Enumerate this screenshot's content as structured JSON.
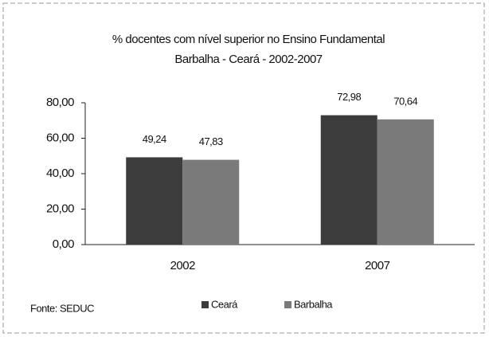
{
  "chart_data": {
    "type": "bar",
    "title": "% docentes com nível superior no  Ensino Fundamental",
    "subtitle": "Barbalha - Ceará - 2002-2007",
    "categories": [
      "2002",
      "2007"
    ],
    "series": [
      {
        "name": "Ceará",
        "color": "#3c3c3c",
        "values": [
          49.24,
          72.98
        ],
        "value_labels": [
          "49,24",
          "72,98"
        ]
      },
      {
        "name": "Barbalha",
        "color": "#7a7a7a",
        "values": [
          47.83,
          70.64
        ],
        "value_labels": [
          "47,83",
          "70,64"
        ]
      }
    ],
    "ylim": [
      0,
      80
    ],
    "yticks": [
      {
        "value": 0,
        "label": "0,00"
      },
      {
        "value": 20,
        "label": "20,00"
      },
      {
        "value": 40,
        "label": "40,00"
      },
      {
        "value": 60,
        "label": "60,00"
      },
      {
        "value": 80,
        "label": "80,00"
      }
    ],
    "grid": false,
    "legend": "bottom",
    "source": "Fonte: SEDUC"
  }
}
